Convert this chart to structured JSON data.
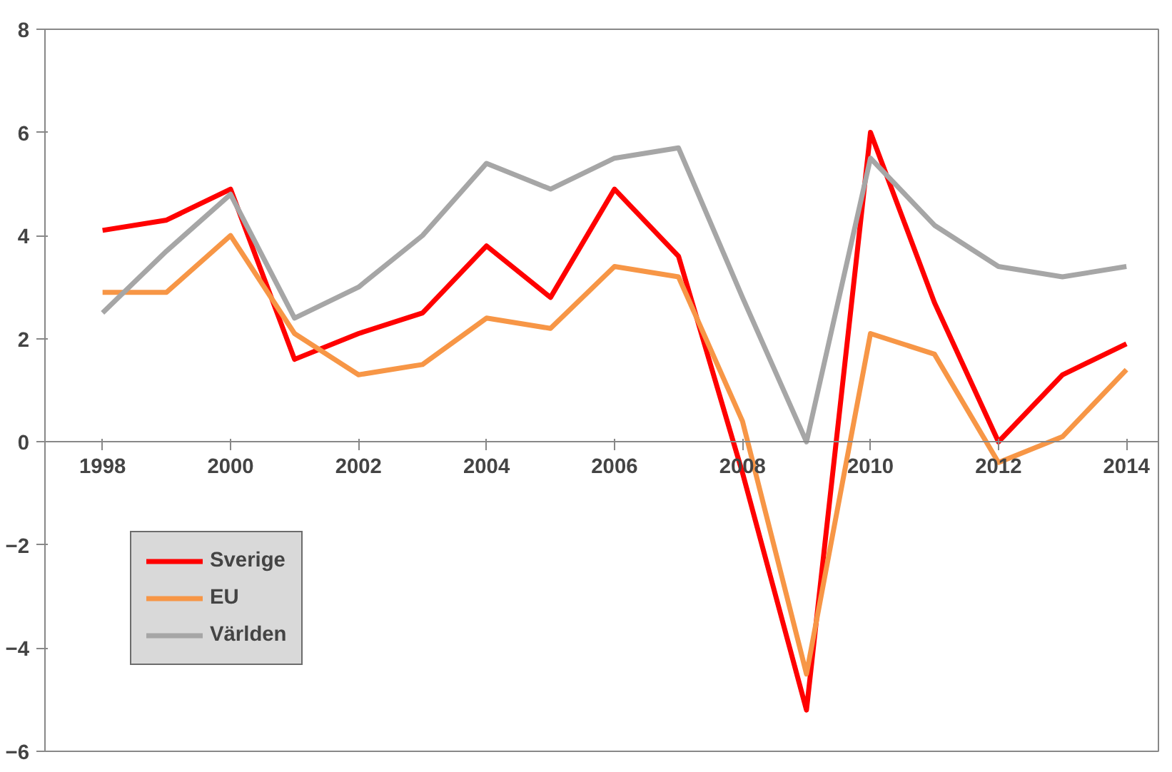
{
  "chart_data": {
    "type": "line",
    "x": [
      1998,
      1999,
      2000,
      2001,
      2002,
      2003,
      2004,
      2005,
      2006,
      2007,
      2008,
      2009,
      2010,
      2011,
      2012,
      2013,
      2014
    ],
    "series": [
      {
        "name": "Sverige",
        "color": "#ff0000",
        "values": [
          4.1,
          4.3,
          4.9,
          1.6,
          2.1,
          2.5,
          3.8,
          2.8,
          4.9,
          3.6,
          -0.6,
          -5.2,
          6.0,
          2.7,
          0.0,
          1.3,
          1.9
        ]
      },
      {
        "name": "EU",
        "color": "#f79646",
        "values": [
          2.9,
          2.9,
          4.0,
          2.1,
          1.3,
          1.5,
          2.4,
          2.2,
          3.4,
          3.2,
          0.4,
          -4.5,
          2.1,
          1.7,
          -0.4,
          0.1,
          1.4
        ]
      },
      {
        "name": "Världen",
        "color": "#a6a6a6",
        "values": [
          2.5,
          3.7,
          4.8,
          2.4,
          3.0,
          4.0,
          5.4,
          4.9,
          5.5,
          5.7,
          2.8,
          0.0,
          5.5,
          4.2,
          3.4,
          3.2,
          3.4
        ]
      }
    ],
    "xlim": [
      1997.1,
      2014.5
    ],
    "xticks": [
      1998,
      2000,
      2002,
      2004,
      2006,
      2008,
      2010,
      2012,
      2014
    ],
    "ylim": [
      -6,
      8
    ],
    "yticks": [
      -6,
      -4,
      -2,
      0,
      2,
      4,
      6,
      8
    ],
    "grid": false,
    "legend": "bottom left",
    "marker": "none",
    "line_style": "solid"
  }
}
